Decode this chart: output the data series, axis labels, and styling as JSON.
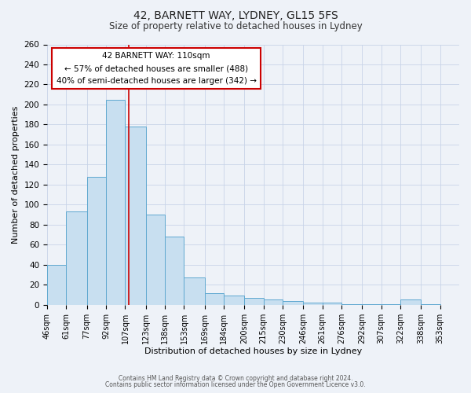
{
  "title": "42, BARNETT WAY, LYDNEY, GL15 5FS",
  "subtitle": "Size of property relative to detached houses in Lydney",
  "xlabel": "Distribution of detached houses by size in Lydney",
  "ylabel": "Number of detached properties",
  "footnote1": "Contains HM Land Registry data © Crown copyright and database right 2024.",
  "footnote2": "Contains public sector information licensed under the Open Government Licence v3.0.",
  "bar_left_edges": [
    46,
    61,
    77,
    92,
    107,
    123,
    138,
    153,
    169,
    184,
    200,
    215,
    230,
    246,
    261,
    276,
    292,
    307,
    322,
    338
  ],
  "bar_widths": [
    15,
    16,
    15,
    15,
    16,
    15,
    15,
    16,
    15,
    16,
    15,
    15,
    16,
    15,
    15,
    16,
    15,
    15,
    16,
    15
  ],
  "bar_heights": [
    40,
    93,
    128,
    205,
    178,
    90,
    68,
    27,
    12,
    9,
    7,
    5,
    4,
    2,
    2,
    1,
    1,
    1,
    5,
    1
  ],
  "bar_color": "#c8dff0",
  "bar_edge_color": "#5fa8d0",
  "tick_labels": [
    "46sqm",
    "61sqm",
    "77sqm",
    "92sqm",
    "107sqm",
    "123sqm",
    "138sqm",
    "153sqm",
    "169sqm",
    "184sqm",
    "200sqm",
    "215sqm",
    "230sqm",
    "246sqm",
    "261sqm",
    "276sqm",
    "292sqm",
    "307sqm",
    "322sqm",
    "338sqm",
    "353sqm"
  ],
  "tick_positions": [
    46,
    61,
    77,
    92,
    107,
    123,
    138,
    153,
    169,
    184,
    200,
    215,
    230,
    246,
    261,
    276,
    292,
    307,
    322,
    338,
    353
  ],
  "vline_x": 110,
  "vline_color": "#cc0000",
  "ylim": [
    0,
    260
  ],
  "yticks": [
    0,
    20,
    40,
    60,
    80,
    100,
    120,
    140,
    160,
    180,
    200,
    220,
    240,
    260
  ],
  "annotation_title": "42 BARNETT WAY: 110sqm",
  "annotation_line1": "← 57% of detached houses are smaller (488)",
  "annotation_line2": "40% of semi-detached houses are larger (342) →",
  "annotation_box_color": "#ffffff",
  "annotation_box_edge": "#cc0000",
  "grid_color": "#c8d4e8",
  "bg_color": "#eef2f8"
}
